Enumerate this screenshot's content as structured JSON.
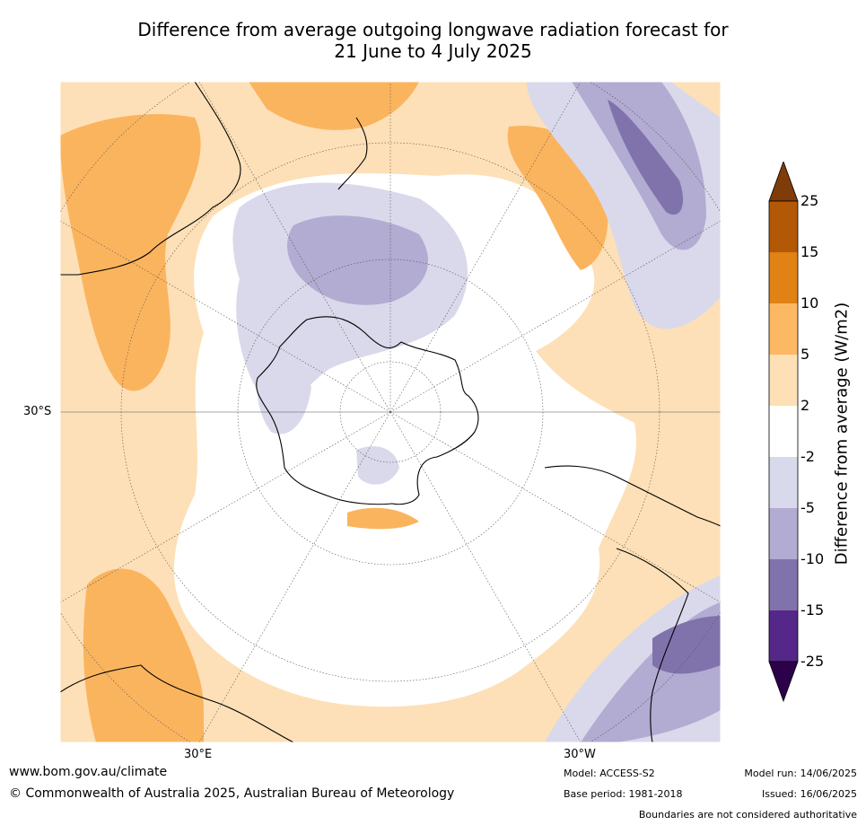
{
  "title": {
    "line1": "Difference from average outgoing longwave radiation forecast for",
    "line2": "21 June to 4 July 2025"
  },
  "map": {
    "projection": "south-polar",
    "lat_label": "30°S",
    "lon_labels": [
      "30°E",
      "30°W"
    ],
    "colors": {
      "land_outline": "#000000",
      "graticule": "#555555",
      "orange_light": "#fde0b7",
      "orange_mid": "#fbb45e",
      "purple_light": "#d9d9eb",
      "purple_mid": "#b2abd2",
      "purple_dark": "#8073ac"
    }
  },
  "colorbar": {
    "label": "Difference from average (W/m2)",
    "ticks": [
      "25",
      "15",
      "10",
      "5",
      "2",
      "-2",
      "-5",
      "-10",
      "-15",
      "-25"
    ],
    "colors": [
      "#7f3b08",
      "#b35806",
      "#e08214",
      "#fdb863",
      "#fee0b6",
      "#ffffff",
      "#d8daeb",
      "#b2abd2",
      "#8073ac",
      "#542788",
      "#2d004b"
    ]
  },
  "footer": {
    "url": "www.bom.gov.au/climate",
    "copyright": "© Commonwealth of Australia 2025, Australian Bureau of Meteorology",
    "model": "Model: ACCESS-S2",
    "base_period": "Base period: 1981-2018",
    "model_run": "Model run: 14/06/2025",
    "issued": "Issued: 16/06/2025",
    "disclaimer": "Boundaries are not considered authoritative"
  }
}
